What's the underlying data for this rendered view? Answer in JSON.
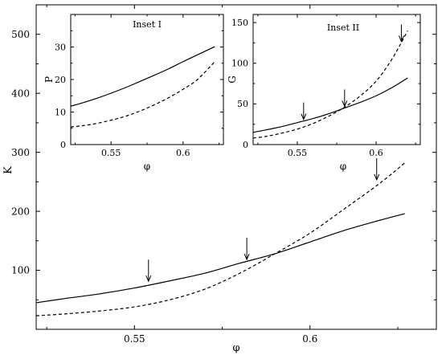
{
  "chart_data": [
    {
      "id": "main",
      "type": "line",
      "xlabel": "φ",
      "ylabel": "K",
      "xlim": [
        0.522,
        0.636
      ],
      "ylim": [
        0,
        550
      ],
      "xticks": [
        0.55,
        0.6
      ],
      "xtick_labels": [
        "0.55",
        "0.6"
      ],
      "yticks": [
        100,
        200,
        300,
        400,
        500
      ],
      "ytick_labels": [
        "100",
        "200",
        "300",
        "400",
        "500"
      ],
      "series": [
        {
          "style": "solid",
          "x": [
            0.522,
            0.53,
            0.54,
            0.55,
            0.56,
            0.57,
            0.58,
            0.59,
            0.6,
            0.61,
            0.62,
            0.627
          ],
          "y": [
            45,
            52,
            60,
            70,
            82,
            95,
            112,
            128,
            148,
            168,
            185,
            196
          ]
        },
        {
          "style": "dashed",
          "x": [
            0.522,
            0.53,
            0.54,
            0.55,
            0.56,
            0.57,
            0.58,
            0.59,
            0.6,
            0.61,
            0.62,
            0.627
          ],
          "y": [
            23,
            26,
            31,
            38,
            50,
            68,
            95,
            128,
            163,
            205,
            248,
            282
          ]
        }
      ],
      "arrows": [
        {
          "x": 0.554,
          "y": 80
        },
        {
          "x": 0.582,
          "y": 117
        },
        {
          "x": 0.619,
          "y": 252
        }
      ]
    },
    {
      "id": "inset1",
      "type": "line",
      "title": "Inset I",
      "xlabel": "φ",
      "ylabel": "P",
      "xlim": [
        0.522,
        0.628
      ],
      "ylim": [
        0,
        40
      ],
      "xticks": [
        0.55,
        0.6
      ],
      "xtick_labels": [
        "0.55",
        "0.6"
      ],
      "yticks": [
        0,
        10,
        20,
        30
      ],
      "ytick_labels": [
        "0",
        "10",
        "20",
        "30"
      ],
      "series": [
        {
          "style": "solid",
          "x": [
            0.522,
            0.53,
            0.54,
            0.55,
            0.56,
            0.57,
            0.58,
            0.59,
            0.6,
            0.61,
            0.622
          ],
          "y": [
            11.8,
            12.8,
            14.2,
            15.8,
            17.5,
            19.4,
            21.3,
            23.3,
            25.5,
            27.6,
            30.1
          ]
        },
        {
          "style": "dashed",
          "x": [
            0.522,
            0.53,
            0.54,
            0.55,
            0.56,
            0.57,
            0.58,
            0.59,
            0.6,
            0.61,
            0.622
          ],
          "y": [
            5.4,
            5.8,
            6.5,
            7.5,
            8.7,
            10.3,
            12.2,
            14.4,
            17.0,
            20.0,
            25.5
          ]
        }
      ]
    },
    {
      "id": "inset2",
      "type": "line",
      "title": "Inset II",
      "xlabel": "φ",
      "ylabel": "G",
      "xlim": [
        0.522,
        0.628
      ],
      "ylim": [
        0,
        160
      ],
      "xticks": [
        0.55,
        0.6
      ],
      "xtick_labels": [
        "0.55",
        "0.6"
      ],
      "yticks": [
        0,
        50,
        100,
        150
      ],
      "ytick_labels": [
        "0",
        "50",
        "100",
        "150"
      ],
      "series": [
        {
          "style": "solid",
          "x": [
            0.522,
            0.53,
            0.54,
            0.55,
            0.56,
            0.57,
            0.58,
            0.59,
            0.6,
            0.61,
            0.62
          ],
          "y": [
            15,
            18,
            22,
            27,
            32,
            38,
            45,
            52,
            60,
            70,
            82
          ]
        },
        {
          "style": "dashed",
          "x": [
            0.522,
            0.53,
            0.54,
            0.55,
            0.56,
            0.57,
            0.58,
            0.59,
            0.6,
            0.61,
            0.62
          ],
          "y": [
            8,
            10,
            14,
            19,
            26,
            35,
            46,
            60,
            78,
            105,
            140
          ]
        }
      ],
      "arrows": [
        {
          "x": 0.554,
          "y": 30
        },
        {
          "x": 0.58,
          "y": 46
        },
        {
          "x": 0.616,
          "y": 126
        }
      ]
    }
  ]
}
